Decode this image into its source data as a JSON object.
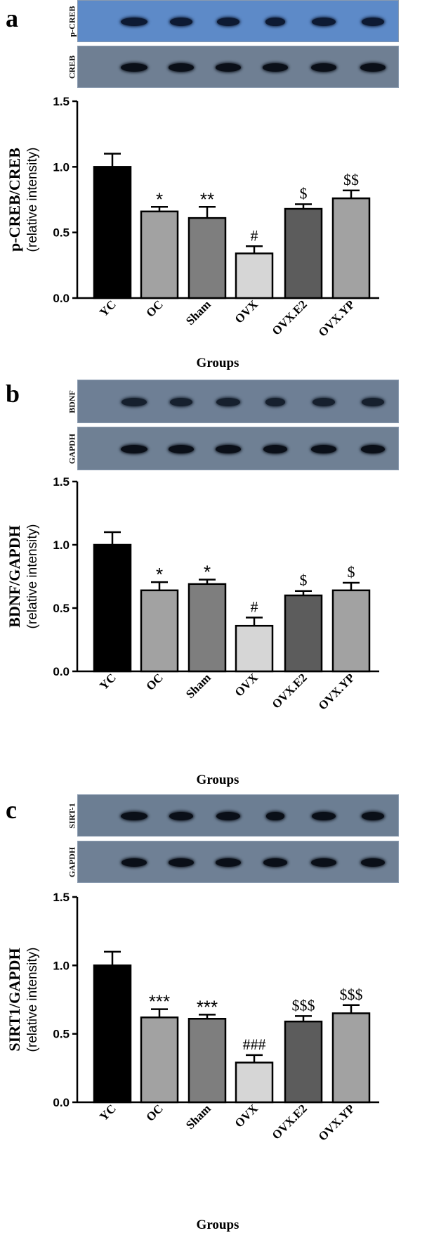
{
  "panels": [
    {
      "letter": "a",
      "blots": [
        {
          "label": "p-CREB",
          "bg": "#5d8ac8",
          "band_color": "#0d1a33",
          "band_widths": [
            1.0,
            0.85,
            0.85,
            0.75,
            0.9,
            0.85
          ]
        },
        {
          "label": "CREB",
          "bg": "#6f7f93",
          "band_color": "#0a0f18",
          "band_widths": [
            1.0,
            0.95,
            0.95,
            0.95,
            0.95,
            0.95
          ]
        }
      ],
      "ylabel": "p-CREB/CREB",
      "ylabel2": "(relative intensity)",
      "xlabel": "Groups"
    },
    {
      "letter": "b",
      "blots": [
        {
          "label": "BDNF",
          "bg": "#6e7f95",
          "band_color": "#16202e",
          "band_widths": [
            0.95,
            0.85,
            0.9,
            0.75,
            0.85,
            0.85
          ]
        },
        {
          "label": "GAPDH",
          "bg": "#6f8094",
          "band_color": "#0a0f18",
          "band_widths": [
            1.0,
            0.95,
            0.95,
            0.9,
            0.95,
            0.9
          ]
        }
      ],
      "ylabel": "BDNF/GAPDH",
      "ylabel2": "(relative intensity)",
      "xlabel": "Groups"
    },
    {
      "letter": "c",
      "blots": [
        {
          "label": "SIRT-1",
          "bg": "#6c7e93",
          "band_color": "#0a0f18",
          "band_widths": [
            1.0,
            0.9,
            0.9,
            0.7,
            0.9,
            0.85
          ]
        },
        {
          "label": "GAPDH",
          "bg": "#6f8095",
          "band_color": "#0a0f18",
          "band_widths": [
            0.95,
            0.95,
            0.95,
            0.9,
            0.95,
            0.9
          ]
        }
      ],
      "ylabel": "SIRT1/GAPDH",
      "ylabel2": "(relative intensity)",
      "xlabel": "Groups"
    }
  ],
  "chart_data": [
    {
      "type": "bar",
      "categories": [
        "YC",
        "OC",
        "Sham",
        "OVX",
        "OVX.E2",
        "OVX.YP"
      ],
      "values": [
        1.0,
        0.66,
        0.61,
        0.34,
        0.68,
        0.76
      ],
      "errors": [
        0.1,
        0.035,
        0.085,
        0.055,
        0.035,
        0.06
      ],
      "significance": [
        "",
        "*",
        "**",
        "#",
        "$",
        "$$"
      ],
      "colors": [
        "#000000",
        "#a2a2a2",
        "#7e7e7e",
        "#d6d6d6",
        "#5c5c5c",
        "#a2a2a2"
      ],
      "ylabel": "p-CREB/CREB (relative intensity)",
      "xlabel": "Groups",
      "ylim": [
        0.0,
        1.5
      ],
      "yticks": [
        "0.0",
        "0.5",
        "1.0",
        "1.5"
      ]
    },
    {
      "type": "bar",
      "categories": [
        "YC",
        "OC",
        "Sham",
        "OVX",
        "OVX.E2",
        "OVX.YP"
      ],
      "values": [
        1.0,
        0.64,
        0.69,
        0.36,
        0.6,
        0.64
      ],
      "errors": [
        0.1,
        0.065,
        0.035,
        0.065,
        0.035,
        0.06
      ],
      "significance": [
        "",
        "*",
        "*",
        "#",
        "$",
        "$"
      ],
      "colors": [
        "#000000",
        "#a2a2a2",
        "#7e7e7e",
        "#d6d6d6",
        "#5c5c5c",
        "#a2a2a2"
      ],
      "ylabel": "BDNF/GAPDH (relative intensity)",
      "xlabel": "Groups",
      "ylim": [
        0.0,
        1.5
      ],
      "yticks": [
        "0.0",
        "0.5",
        "1.0",
        "1.5"
      ]
    },
    {
      "type": "bar",
      "categories": [
        "YC",
        "OC",
        "Sham",
        "OVX",
        "OVX.E2",
        "OVX.YP"
      ],
      "values": [
        1.0,
        0.62,
        0.61,
        0.29,
        0.59,
        0.65
      ],
      "errors": [
        0.1,
        0.06,
        0.03,
        0.055,
        0.04,
        0.06
      ],
      "significance": [
        "",
        "***",
        "***",
        "###",
        "$$$",
        "$$$"
      ],
      "colors": [
        "#000000",
        "#a2a2a2",
        "#7e7e7e",
        "#d6d6d6",
        "#5c5c5c",
        "#a2a2a2"
      ],
      "ylabel": "SIRT1/GAPDH (relative intensity)",
      "xlabel": "Groups",
      "ylim": [
        0.0,
        1.5
      ],
      "yticks": [
        "0.0",
        "0.5",
        "1.0",
        "1.5"
      ]
    }
  ]
}
